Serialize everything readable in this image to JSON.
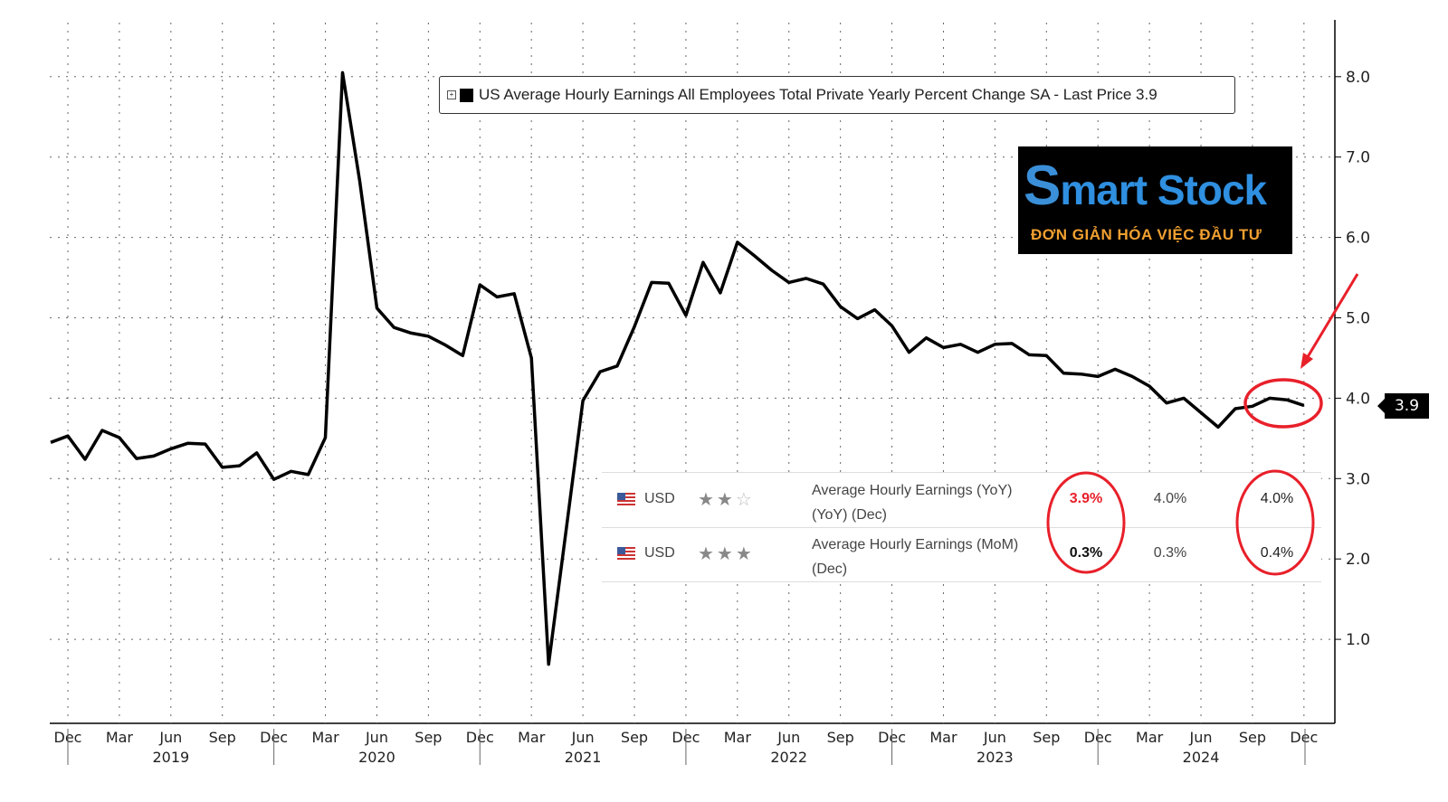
{
  "chart_data": {
    "type": "line",
    "title": "US Average Hourly Earnings All Employees Total Private Yearly Percent Change SA - Last Price 3.9",
    "last_price": "3.9",
    "ylim": [
      0,
      8.5
    ],
    "yticks": [
      "1.0",
      "2.0",
      "3.0",
      "4.0",
      "5.0",
      "6.0",
      "7.0",
      "8.0"
    ],
    "xtick_labels": [
      "Dec",
      "Mar",
      "Jun",
      "Sep",
      "Dec",
      "Mar",
      "Jun",
      "Sep",
      "Dec",
      "Mar",
      "Jun",
      "Sep",
      "Dec",
      "Mar",
      "Jun",
      "Sep",
      "Dec",
      "Mar",
      "Jun",
      "Sep",
      "Dec",
      "Mar",
      "Jun",
      "Sep",
      "Dec"
    ],
    "year_labels": [
      "2019",
      "2020",
      "2021",
      "2022",
      "2023",
      "2024"
    ],
    "grid": true,
    "line_color": "#000000",
    "x": [
      "2018-11",
      "2018-12",
      "2019-01",
      "2019-02",
      "2019-03",
      "2019-04",
      "2019-05",
      "2019-06",
      "2019-07",
      "2019-08",
      "2019-09",
      "2019-10",
      "2019-11",
      "2019-12",
      "2020-01",
      "2020-02",
      "2020-03",
      "2020-04",
      "2020-05",
      "2020-06",
      "2020-07",
      "2020-08",
      "2020-09",
      "2020-10",
      "2020-11",
      "2020-12",
      "2021-01",
      "2021-02",
      "2021-03",
      "2021-04",
      "2021-05",
      "2021-06",
      "2021-07",
      "2021-08",
      "2021-09",
      "2021-10",
      "2021-11",
      "2021-12",
      "2022-01",
      "2022-02",
      "2022-03",
      "2022-04",
      "2022-05",
      "2022-06",
      "2022-07",
      "2022-08",
      "2022-09",
      "2022-10",
      "2022-11",
      "2022-12",
      "2023-01",
      "2023-02",
      "2023-03",
      "2023-04",
      "2023-05",
      "2023-06",
      "2023-07",
      "2023-08",
      "2023-09",
      "2023-10",
      "2023-11",
      "2023-12",
      "2024-01",
      "2024-02",
      "2024-03",
      "2024-04",
      "2024-05",
      "2024-06",
      "2024-07",
      "2024-08",
      "2024-09",
      "2024-10",
      "2024-11",
      "2024-12"
    ],
    "values": [
      3.45,
      3.53,
      3.24,
      3.6,
      3.51,
      3.25,
      3.28,
      3.37,
      3.44,
      3.43,
      3.14,
      3.16,
      3.32,
      2.99,
      3.09,
      3.05,
      3.51,
      8.05,
      6.7,
      5.12,
      4.88,
      4.81,
      4.77,
      4.66,
      4.53,
      5.41,
      5.26,
      5.3,
      4.5,
      0.69,
      2.32,
      3.97,
      4.33,
      4.4,
      4.89,
      5.44,
      5.43,
      5.03,
      5.69,
      5.31,
      5.94,
      5.77,
      5.59,
      5.44,
      5.49,
      5.42,
      5.14,
      4.99,
      5.1,
      4.9,
      4.57,
      4.75,
      4.63,
      4.67,
      4.57,
      4.67,
      4.68,
      4.54,
      4.53,
      4.31,
      4.3,
      4.27,
      4.36,
      4.27,
      4.15,
      3.94,
      4.0,
      3.82,
      3.64,
      3.87,
      3.9,
      4.0,
      3.98,
      3.91
    ]
  },
  "logo": {
    "name": "Smart Stock",
    "tagline": "ĐƠN GIẢN HÓA VIỆC ĐẦU TƯ"
  },
  "table": {
    "rows": [
      {
        "currency": "USD",
        "stars": 2,
        "event": "Average Hourly Earnings (YoY)",
        "event2": "(YoY) (Dec)",
        "actual": "3.9%",
        "forecast": "4.0%",
        "previous": "4.0%",
        "actual_color": "#e8202a"
      },
      {
        "currency": "USD",
        "stars": 3,
        "event": "Average Hourly Earnings (MoM)",
        "event2": "(Dec)",
        "actual": "0.3%",
        "forecast": "0.3%",
        "previous": "0.4%",
        "actual_color": "#111111"
      }
    ]
  },
  "annotation_color": "#e8202a"
}
